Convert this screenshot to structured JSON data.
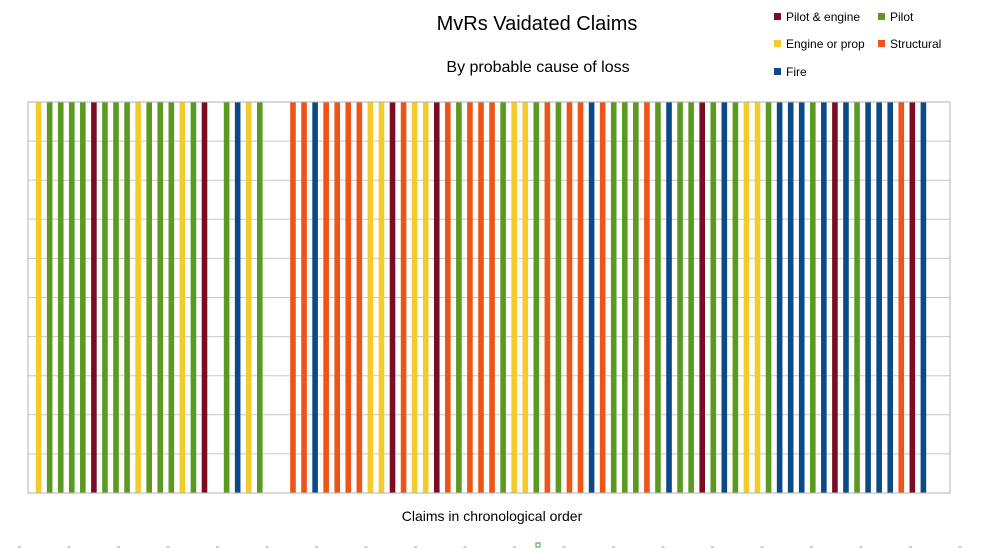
{
  "chart_data": {
    "type": "bar",
    "title": "MvRs Vaidated Claims",
    "subtitle": "By probable cause of loss",
    "xlabel": "Claims in chronological order",
    "ylabel": "",
    "ylim": [
      0,
      1
    ],
    "grid": true,
    "legend_position": "top-right",
    "legend": [
      {
        "label": "Pilot & engine",
        "cause": "pilot_engine"
      },
      {
        "label": "Pilot",
        "cause": "pilot"
      },
      {
        "label": "Engine or prop",
        "cause": "engine"
      },
      {
        "label": "Structural",
        "cause": "structural"
      },
      {
        "label": "Fire",
        "cause": "fire"
      }
    ],
    "colors": {
      "pilot_engine": "#7b0c24",
      "pilot": "#5a9a21",
      "engine": "#f3cc2b",
      "structural": "#ec5418",
      "fire": "#0b4a86"
    },
    "claims": [
      "engine",
      "pilot",
      "pilot",
      "pilot",
      "pilot",
      "pilot_engine",
      "pilot",
      "pilot",
      "pilot",
      "engine",
      "pilot",
      "pilot",
      "pilot",
      "engine",
      "pilot",
      "pilot_engine",
      null,
      "pilot",
      "fire",
      "engine",
      "pilot",
      null,
      null,
      "structural",
      "structural",
      "fire",
      "structural",
      "structural",
      "structural",
      "structural",
      "engine",
      "engine",
      "pilot_engine",
      "structural",
      "engine",
      "engine",
      "pilot_engine",
      "structural",
      "pilot",
      "structural",
      "structural",
      "structural",
      "pilot",
      "engine",
      "engine",
      "pilot",
      "structural",
      "pilot",
      "structural",
      "structural",
      "fire",
      "structural",
      "pilot",
      "pilot",
      "pilot",
      "structural",
      "pilot",
      "fire",
      "pilot",
      "pilot",
      "pilot_engine",
      "pilot",
      "fire",
      "pilot",
      "engine",
      "engine",
      "pilot",
      "fire",
      "fire",
      "fire",
      "pilot",
      "fire",
      "pilot_engine",
      "fire",
      "pilot",
      "fire",
      "fire",
      "fire",
      "structural",
      "pilot_engine",
      "fire"
    ],
    "values": [
      1,
      1,
      1,
      1,
      1,
      1,
      1,
      1,
      1,
      1,
      1,
      1,
      1,
      1,
      1,
      1,
      0,
      1,
      1,
      1,
      1,
      0,
      0,
      1,
      1,
      1,
      1,
      1,
      1,
      1,
      1,
      1,
      1,
      1,
      1,
      1,
      1,
      1,
      1,
      1,
      1,
      1,
      1,
      1,
      1,
      1,
      1,
      1,
      1,
      1,
      1,
      1,
      1,
      1,
      1,
      1,
      1,
      1,
      1,
      1,
      1,
      1,
      1,
      1,
      1,
      1,
      1,
      1,
      1,
      1,
      1,
      1,
      1,
      1,
      1,
      1,
      1,
      1,
      1,
      1,
      1
    ]
  }
}
